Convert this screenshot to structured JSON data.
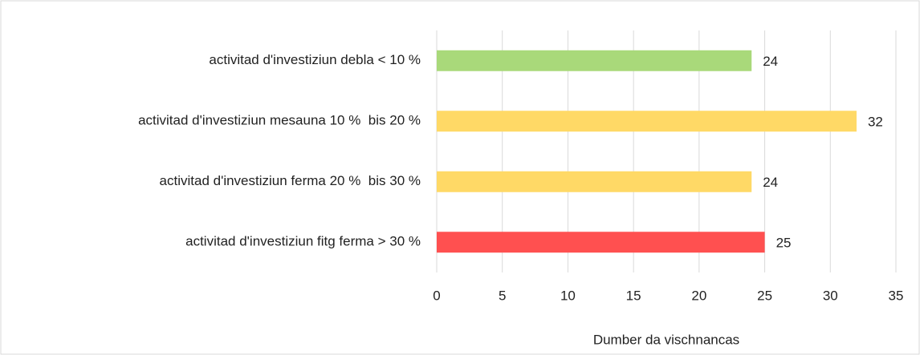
{
  "chart_data": {
    "type": "bar",
    "orientation": "horizontal",
    "categories": [
      "activitad d'investiziun debla < 10 %",
      "activitad d'investiziun mesauna 10 %  bis 20 %",
      "activitad d'investiziun ferma 20 %  bis 30 %",
      "activitad d'investiziun fitg ferma > 30 %"
    ],
    "values": [
      24,
      32,
      24,
      25
    ],
    "colors": [
      "#a9d97a",
      "#ffd966",
      "#ffd966",
      "#ff5050"
    ],
    "x_label": "Dumber da vischnancas",
    "xlim": [
      0,
      35
    ],
    "xticks": [
      0,
      5,
      10,
      15,
      20,
      25,
      30,
      35
    ],
    "grid": true
  }
}
